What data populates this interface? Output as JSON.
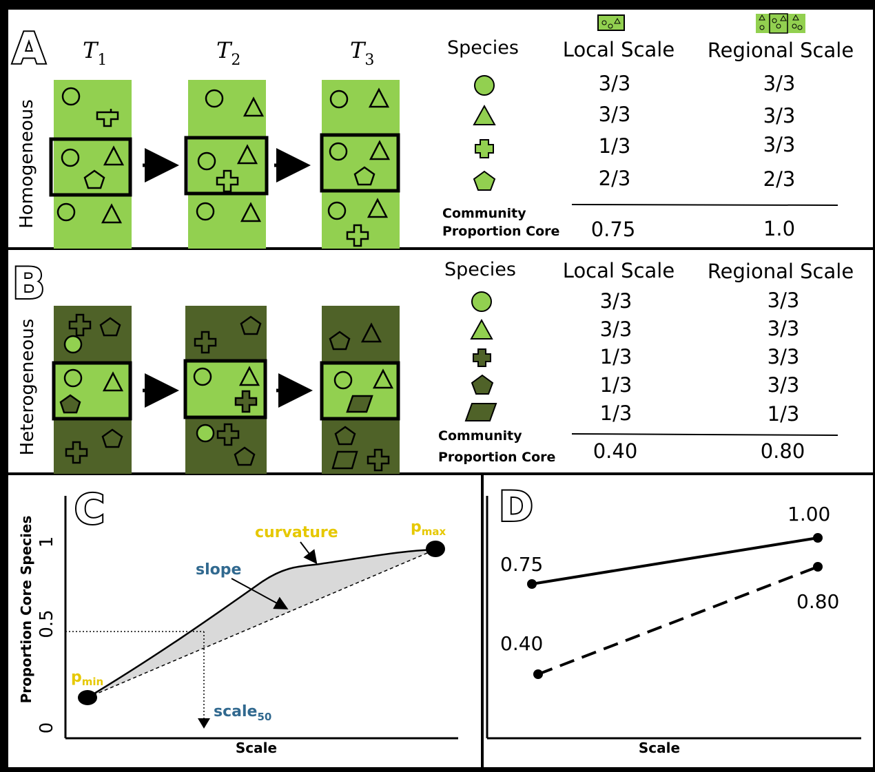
{
  "colors": {
    "light_green": "#92d050",
    "dark_green": "#4f6228",
    "yellow_label": "#e6c800",
    "blue_label": "#31698f",
    "frame": "#000000",
    "panel_bg": "#ffffff"
  },
  "panel_a": {
    "letter": "A",
    "side_label": "Homogeneous",
    "time_labels": [
      {
        "base": "T",
        "sub": "1"
      },
      {
        "base": "T",
        "sub": "2"
      },
      {
        "base": "T",
        "sub": "3"
      }
    ],
    "table": {
      "species_header": "Species",
      "local_header": "Local Scale",
      "regional_header": "Regional Scale",
      "rows": [
        {
          "shape": "circle",
          "local": "3/3",
          "regional": "3/3"
        },
        {
          "shape": "triangle",
          "local": "3/3",
          "regional": "3/3"
        },
        {
          "shape": "cross",
          "local": "1/3",
          "regional": "3/3"
        },
        {
          "shape": "pentagon",
          "local": "2/3",
          "regional": "2/3"
        }
      ],
      "summary_label_line1": "Community",
      "summary_label_line2": "Proportion Core",
      "summary_local": "0.75",
      "summary_regional": "1.0"
    }
  },
  "panel_b": {
    "letter": "B",
    "side_label": "Heterogeneous",
    "table": {
      "species_header": "Species",
      "local_header": "Local Scale",
      "regional_header": "Regional Scale",
      "rows": [
        {
          "shape": "circle",
          "local": "3/3",
          "regional": "3/3"
        },
        {
          "shape": "triangle",
          "local": "3/3",
          "regional": "3/3"
        },
        {
          "shape": "cross",
          "local": "1/3",
          "regional": "3/3"
        },
        {
          "shape": "pentagon",
          "local": "1/3",
          "regional": "3/3"
        },
        {
          "shape": "parallelogram",
          "local": "1/3",
          "regional": "1/3"
        }
      ],
      "summary_label_line1": "Community",
      "summary_label_line2": "Proportion Core",
      "summary_local": "0.40",
      "summary_regional": "0.80"
    }
  },
  "panel_c": {
    "letter": "C",
    "ylabel": "Proportion Core Species",
    "xlabel": "Scale",
    "y_ticks": [
      "0",
      "0.5",
      "1"
    ],
    "p_min": {
      "base": "p",
      "sub": "min"
    },
    "p_max": {
      "base": "p",
      "sub": "max"
    },
    "curvature_label": "curvature",
    "slope_label": "slope",
    "scale50": {
      "base": "scale",
      "sub": "50"
    }
  },
  "panel_d": {
    "letter": "D",
    "xlabel": "Scale",
    "series": [
      {
        "style": "solid",
        "start_label": "0.75",
        "end_label": "1.00"
      },
      {
        "style": "dashed",
        "start_label": "0.40",
        "end_label": "0.80"
      }
    ]
  }
}
